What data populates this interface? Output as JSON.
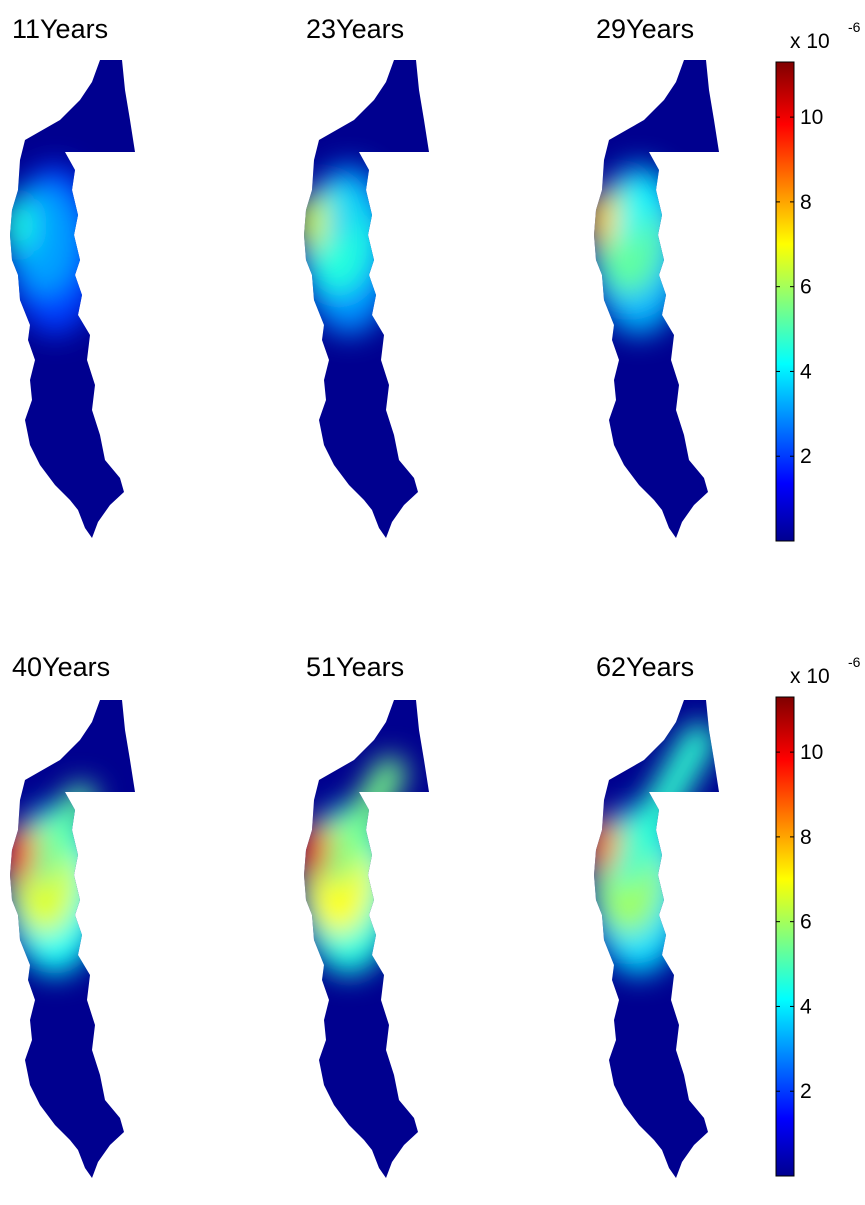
{
  "figure": {
    "colormap": "jet",
    "colormap_stops": [
      "#00008f",
      "#0000ff",
      "#00ffff",
      "#ffff00",
      "#ff0000",
      "#800000"
    ],
    "domain_color": "#00008f"
  },
  "colorbars": [
    {
      "exponent_prefix": "x 10",
      "exponent": "-6",
      "range": [
        0,
        11.3
      ],
      "ticks": [
        "2",
        "4",
        "6",
        "8",
        "10"
      ],
      "tick_values": [
        2,
        4,
        6,
        8,
        10
      ]
    },
    {
      "exponent_prefix": "x 10",
      "exponent": "-6",
      "range": [
        0,
        11.3
      ],
      "ticks": [
        "2",
        "4",
        "6",
        "8",
        "10"
      ],
      "tick_values": [
        2,
        4,
        6,
        8,
        10
      ]
    }
  ],
  "panels": [
    {
      "title": "11Years",
      "peak_value": 4.5,
      "plume_spread": 0.0
    },
    {
      "title": "23Years",
      "peak_value": 6.5,
      "plume_spread": 0.15
    },
    {
      "title": "29Years",
      "peak_value": 7.5,
      "plume_spread": 0.3
    },
    {
      "title": "40Years",
      "peak_value": 9.5,
      "plume_spread": 0.55
    },
    {
      "title": "51Years",
      "peak_value": 10.0,
      "plume_spread": 0.75
    },
    {
      "title": "62Years",
      "peak_value": 8.5,
      "plume_spread": 1.0
    }
  ]
}
